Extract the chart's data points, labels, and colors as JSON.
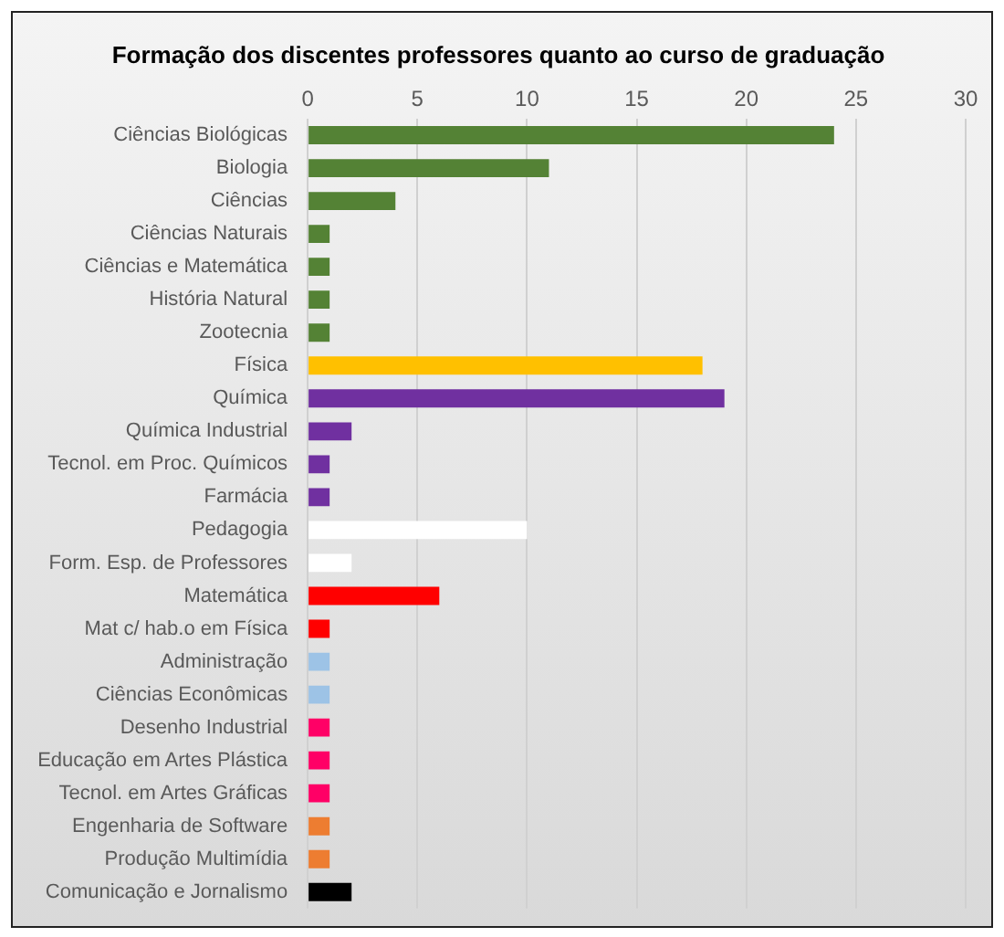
{
  "chart_data": {
    "type": "bar",
    "orientation": "horizontal",
    "title": "Formação dos discentes professores quanto ao curso de graduação",
    "categories": [
      "Ciências Biológicas",
      "Biologia",
      "Ciências",
      "Ciências Naturais",
      "Ciências e Matemática",
      "História Natural",
      "Zootecnia",
      "Física",
      "Química",
      "Química Industrial",
      "Tecnol. em Proc. Químicos",
      "Farmácia",
      "Pedagogia",
      "Form. Esp. de Professores",
      "Matemática",
      "Mat c/ hab.o em Física",
      "Administração",
      "Ciências Econômicas",
      "Desenho Industrial",
      "Educação em Artes Plástica",
      "Tecnol. em Artes Gráficas",
      "Engenharia de Software",
      "Produção Multimídia",
      "Comunicação e Jornalismo"
    ],
    "values": [
      24,
      11,
      4,
      1,
      1,
      1,
      1,
      18,
      19,
      2,
      1,
      1,
      10,
      2,
      6,
      1,
      1,
      1,
      1,
      1,
      1,
      1,
      1,
      2
    ],
    "colors": [
      "#548235",
      "#548235",
      "#548235",
      "#548235",
      "#548235",
      "#548235",
      "#548235",
      "#ffc000",
      "#7030a0",
      "#7030a0",
      "#7030a0",
      "#7030a0",
      "#ffffff",
      "#ffffff",
      "#ff0000",
      "#ff0000",
      "#9dc3e6",
      "#9dc3e6",
      "#ff0066",
      "#ff0066",
      "#ff0066",
      "#ed7d31",
      "#ed7d31",
      "#000000"
    ],
    "xlim": [
      0,
      30
    ],
    "xticks": [
      0,
      5,
      10,
      15,
      20,
      25,
      30
    ],
    "grid": "x",
    "legend": false
  }
}
